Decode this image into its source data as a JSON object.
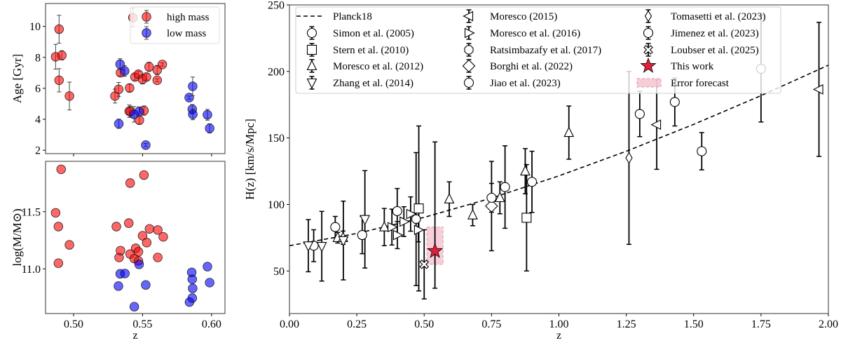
{
  "chart_data": [
    {
      "type": "scatter",
      "panel": "top-left",
      "xlabel": "z",
      "ylabel": "Age [Gyr]",
      "xlim": [
        0.4797,
        0.6097
      ],
      "ylim": [
        1.78,
        11.48
      ],
      "xticks": [
        "0.50",
        "0.55",
        "0.60"
      ],
      "xtick_values": [
        0.5,
        0.55,
        0.6
      ],
      "yticks": [
        "2",
        "4",
        "6",
        "8",
        "10"
      ],
      "ytick_values": [
        2,
        4,
        6,
        8,
        10
      ],
      "show_xtick_labels": false,
      "grid": false,
      "legend_placement": "top-right",
      "series": [
        {
          "name": "high mass",
          "color": "#ff0000",
          "points": [
            [
              0.487,
              8.04,
              0.8
            ],
            [
              0.4895,
              9.82,
              0.9
            ],
            [
              0.4915,
              8.13,
              0.3
            ],
            [
              0.4895,
              6.52,
              0.75
            ],
            [
              0.497,
              5.5,
              0.9
            ],
            [
              0.53,
              5.5,
              0.45
            ],
            [
              0.5327,
              5.93,
              0.45
            ],
            [
              0.534,
              7.01,
              0.2
            ],
            [
              0.5406,
              6.02,
              0.25
            ],
            [
              0.5403,
              4.52,
              0.4
            ],
            [
              0.5412,
              4.5,
              0.35
            ],
            [
              0.5445,
              6.73,
              0.2
            ],
            [
              0.547,
              6.91,
              0.2
            ],
            [
              0.55,
              6.58,
              0.3
            ],
            [
              0.5528,
              6.73,
              0.2
            ],
            [
              0.551,
              4.56,
              0.3
            ],
            [
              0.5477,
              3.94,
              0.25
            ],
            [
              0.5547,
              7.39,
              0.3
            ],
            [
              0.5606,
              7.18,
              0.3
            ],
            [
              0.5606,
              6.52,
              0.1
            ],
            [
              0.5643,
              7.54,
              0.1
            ],
            [
              0.543,
              10.57,
              0.6
            ]
          ]
        },
        {
          "name": "low mass",
          "color": "#0000ff",
          "points": [
            [
              0.5337,
              7.56,
              0.35
            ],
            [
              0.537,
              7.12,
              0.35
            ],
            [
              0.5328,
              3.71,
              0.3
            ],
            [
              0.5438,
              4.32,
              0.5
            ],
            [
              0.5475,
              4.5,
              0.3
            ],
            [
              0.5523,
              2.33,
              0.1
            ],
            [
              0.5838,
              5.4,
              0.1
            ],
            [
              0.5863,
              6.13,
              0.6
            ],
            [
              0.586,
              4.65,
              0.3
            ],
            [
              0.5864,
              4.32,
              0.35
            ],
            [
              0.597,
              4.29,
              0.35
            ],
            [
              0.5986,
              3.41,
              0.3
            ]
          ]
        }
      ]
    },
    {
      "type": "scatter",
      "panel": "bottom-left",
      "xlabel": "z",
      "ylabel": "log(M/M⊙)",
      "xlim": [
        0.4797,
        0.6097
      ],
      "ylim": [
        10.61,
        11.94
      ],
      "xticks": [
        "0.50",
        "0.55",
        "0.60"
      ],
      "xtick_values": [
        0.5,
        0.55,
        0.6
      ],
      "yticks": [
        "11.0",
        "11.5"
      ],
      "ytick_values": [
        11.0,
        11.5
      ],
      "grid": false,
      "series": [
        {
          "name": "high mass",
          "color": "#ff0000",
          "points": [
            [
              0.491,
              11.87
            ],
            [
              0.487,
              11.49
            ],
            [
              0.489,
              11.37
            ],
            [
              0.497,
              11.21
            ],
            [
              0.489,
              11.05
            ],
            [
              0.531,
              11.37
            ],
            [
              0.533,
              11.1
            ],
            [
              0.534,
              11.16
            ],
            [
              0.54,
              11.4
            ],
            [
              0.541,
              11.75
            ],
            [
              0.541,
              11.13
            ],
            [
              0.544,
              11.09
            ],
            [
              0.545,
              11.18
            ],
            [
              0.547,
              11.15
            ],
            [
              0.547,
              11.07
            ],
            [
              0.55,
              11.29
            ],
            [
              0.551,
              11.82
            ],
            [
              0.553,
              11.23
            ],
            [
              0.555,
              11.35
            ],
            [
              0.561,
              11.34
            ],
            [
              0.561,
              11.1
            ],
            [
              0.565,
              11.28
            ]
          ]
        },
        {
          "name": "low mass",
          "color": "#0000ff",
          "points": [
            [
              0.5325,
              10.85
            ],
            [
              0.5338,
              10.957
            ],
            [
              0.5372,
              10.96
            ],
            [
              0.5475,
              11.04
            ],
            [
              0.5523,
              10.86
            ],
            [
              0.544,
              10.67
            ],
            [
              0.584,
              10.71
            ],
            [
              0.586,
              10.745
            ],
            [
              0.5863,
              10.83
            ],
            [
              0.586,
              10.91
            ],
            [
              0.5856,
              10.97
            ],
            [
              0.597,
              11.02
            ],
            [
              0.5986,
              10.88
            ]
          ]
        }
      ]
    },
    {
      "type": "scatter",
      "panel": "right",
      "xlabel": "z",
      "ylabel": "H(z) [km/s/Mpc]",
      "xlim": [
        0,
        2
      ],
      "ylim": [
        18,
        250
      ],
      "xticks": [
        "0.00",
        "0.25",
        "0.50",
        "0.75",
        "1.00",
        "1.25",
        "1.50",
        "1.75",
        "2.00"
      ],
      "xtick_values": [
        0,
        0.25,
        0.5,
        0.75,
        1.0,
        1.25,
        1.5,
        1.75,
        2.0
      ],
      "yticks": [
        "50",
        "100",
        "150",
        "200",
        "250"
      ],
      "ytick_values": [
        50,
        100,
        150,
        200,
        250
      ],
      "grid": false,
      "legend_placement": "top",
      "model_line": {
        "name": "Planck18",
        "style": "dashed",
        "x": [
          0,
          0.25,
          0.5,
          0.75,
          1.0,
          1.25,
          1.5,
          1.75,
          2.0
        ],
        "y": [
          69,
          78.2,
          90.3,
          104.8,
          121.5,
          140,
          160.2,
          181.8,
          204.7
        ]
      },
      "series": [
        {
          "name": "Simon et al. (2005)",
          "marker": "circle",
          "points": [
            [
              0.09,
              69,
              12
            ],
            [
              0.17,
              83,
              8
            ],
            [
              0.27,
              77,
              14
            ],
            [
              0.4,
              95,
              17
            ],
            [
              0.9,
              117,
              23
            ],
            [
              1.3,
              168,
              17
            ],
            [
              1.43,
              177,
              18
            ],
            [
              1.53,
              140,
              14
            ],
            [
              1.75,
              202,
              40
            ]
          ]
        },
        {
          "name": "Stern et al. (2010)",
          "marker": "square",
          "points": [
            [
              0.48,
              97,
              62
            ],
            [
              0.88,
              90,
              40
            ]
          ]
        },
        {
          "name": "Moresco et al. (2012)",
          "marker": "triangle-up",
          "points": [
            [
              0.179,
              75,
              4
            ],
            [
              0.199,
              75,
              5
            ],
            [
              0.352,
              83,
              14
            ],
            [
              0.593,
              104,
              13
            ],
            [
              0.68,
              92,
              8
            ],
            [
              0.781,
              105,
              12
            ],
            [
              0.875,
              125,
              17
            ],
            [
              1.037,
              154,
              20
            ]
          ]
        },
        {
          "name": "Zhang et al. (2014)",
          "marker": "triangle-down",
          "points": [
            [
              0.07,
              69,
              19.6
            ],
            [
              0.12,
              68.6,
              26.2
            ],
            [
              0.2,
              72.9,
              29.6
            ],
            [
              0.28,
              88.8,
              36.6
            ]
          ]
        },
        {
          "name": "Moresco (2015)",
          "marker": "triangle-left",
          "points": [
            [
              1.363,
              160,
              33.6
            ],
            [
              1.965,
              186.5,
              50.4
            ]
          ]
        },
        {
          "name": "Moresco et al. (2016)",
          "marker": "triangle-right",
          "points": [
            [
              0.3802,
              83,
              13.5
            ],
            [
              0.4004,
              77,
              10.2
            ],
            [
              0.4247,
              87.1,
              11.2
            ],
            [
              0.4497,
              92.8,
              12.9
            ],
            [
              0.4783,
              80.9,
              9
            ]
          ]
        },
        {
          "name": "Ratsimbazafy et al. (2017)",
          "marker": "octagon",
          "points": [
            [
              0.47,
              89,
              50
            ]
          ]
        },
        {
          "name": "Borghi et al. (2022)",
          "marker": "diamond",
          "points": [
            [
              0.75,
              98.8,
              33.6
            ]
          ]
        },
        {
          "name": "Jiao et al. (2023)",
          "marker": "circle",
          "points": [
            [
              0.8,
              113.1,
              31
            ]
          ]
        },
        {
          "name": "Tomasetti et al. (2023)",
          "marker": "thin-diamond",
          "points": [
            [
              1.26,
              135,
              65
            ]
          ]
        },
        {
          "name": "Jimenez et al. (2023)",
          "marker": "circle",
          "points": [
            [
              0.75,
              105,
              10.8
            ]
          ]
        },
        {
          "name": "Loubser et al. (2025)",
          "marker": "x-filled",
          "points": [
            [
              0.5,
              55,
              26
            ]
          ]
        },
        {
          "name": "This work",
          "marker": "star",
          "color": "#e0203c",
          "points": [
            [
              0.54,
              65,
              28,
              82
            ]
          ]
        }
      ],
      "error_forecast": {
        "name": "Error forecast",
        "color": "#f4b6c4",
        "z": [
          0.51,
          0.57
        ],
        "H": [
          55,
          83
        ]
      }
    }
  ]
}
